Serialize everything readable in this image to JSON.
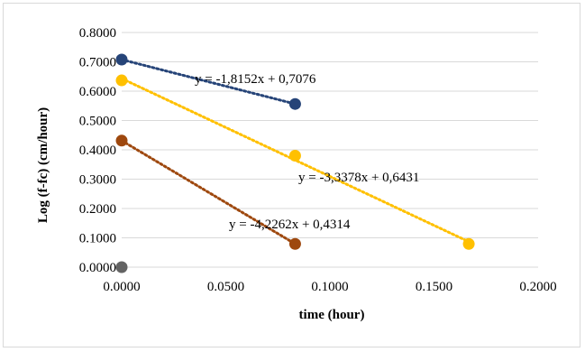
{
  "chart_data": {
    "type": "scatter",
    "title": "",
    "xlabel": "time (hour)",
    "ylabel": "Log (f-fc) (cm/hour)",
    "xlim": [
      0,
      0.2
    ],
    "ylim": [
      0,
      0.8
    ],
    "x_ticks": [
      "0.0000",
      "0.0500",
      "0.1000",
      "0.1500",
      "0.2000"
    ],
    "y_ticks": [
      "0.0000",
      "0.1000",
      "0.2000",
      "0.3000",
      "0.4000",
      "0.5000",
      "0.6000",
      "0.7000",
      "0.8000"
    ],
    "grid": "horizontal",
    "legend": "none",
    "series": [
      {
        "color": "#264478",
        "points": [
          [
            0.0,
            0.7076
          ],
          [
            0.0833,
            0.5563
          ]
        ],
        "trendline": {
          "slope": -1.8152,
          "intercept": 0.7076
        },
        "equation": "y = -1,8152x + 0,7076"
      },
      {
        "color": "#FFC000",
        "points": [
          [
            0.0,
            0.6368
          ],
          [
            0.0833,
            0.3799
          ],
          [
            0.1667,
            0.0792
          ]
        ],
        "trendline": {
          "slope": -3.3378,
          "intercept": 0.6431
        },
        "equation": "y = -3,3378x + 0,6431"
      },
      {
        "color": "#9E480E",
        "points": [
          [
            0.0,
            0.4314
          ],
          [
            0.0833,
            0.0792
          ]
        ],
        "trendline": {
          "slope": -4.2262,
          "intercept": 0.4314
        },
        "equation": "y = -4,2262x + 0,4314"
      },
      {
        "color": "#636363",
        "points": [
          [
            0.0,
            0.0
          ]
        ]
      }
    ]
  }
}
